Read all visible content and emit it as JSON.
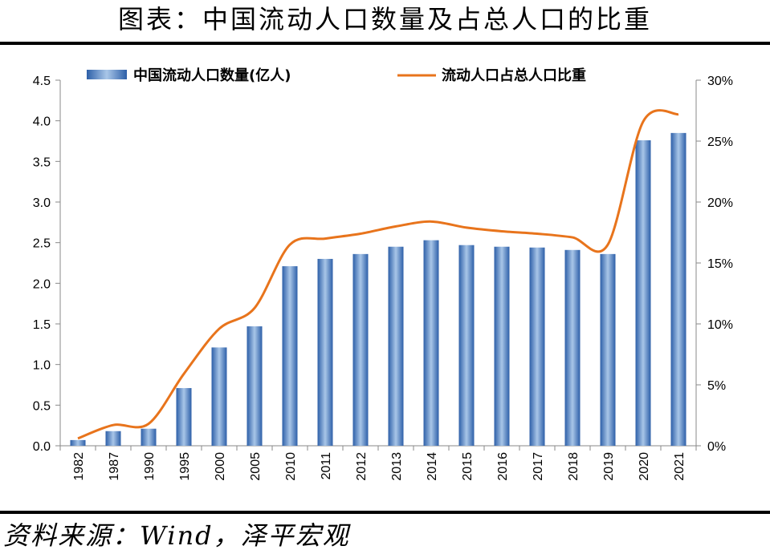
{
  "page": {
    "title": "图表：中国流动人口数量及占总人口的比重",
    "source": "资料来源：Wind，泽平宏观"
  },
  "chart_data": {
    "type": "bar",
    "title": "中国流动人口数量及占总人口的比重",
    "categories": [
      "1982",
      "1987",
      "1990",
      "1995",
      "2000",
      "2005",
      "2010",
      "2011",
      "2012",
      "2013",
      "2014",
      "2015",
      "2016",
      "2017",
      "2018",
      "2019",
      "2020",
      "2021"
    ],
    "series": [
      {
        "name": "中国流动人口数量(亿人)",
        "type": "bar",
        "axis": "left",
        "color": "#4a7fc1",
        "values": [
          0.07,
          0.18,
          0.21,
          0.71,
          1.21,
          1.47,
          2.21,
          2.3,
          2.36,
          2.45,
          2.53,
          2.47,
          2.45,
          2.44,
          2.41,
          2.36,
          3.76,
          3.85
        ]
      },
      {
        "name": "流动人口占总人口比重",
        "type": "line",
        "axis": "right",
        "color": "#e8741c",
        "values": [
          0.6,
          1.7,
          1.8,
          5.9,
          9.6,
          11.3,
          16.5,
          17.0,
          17.4,
          18.0,
          18.4,
          17.9,
          17.6,
          17.4,
          17.1,
          16.5,
          26.6,
          27.2
        ]
      }
    ],
    "y_left": {
      "min": 0,
      "max": 4.5,
      "ticks": [
        "0.0",
        "0.5",
        "1.0",
        "1.5",
        "2.0",
        "2.5",
        "3.0",
        "3.5",
        "4.0",
        "4.5"
      ]
    },
    "y_right": {
      "min": 0,
      "max": 30,
      "ticks": [
        "0%",
        "5%",
        "10%",
        "15%",
        "20%",
        "25%",
        "30%"
      ]
    },
    "legend": "top",
    "grid": false
  }
}
